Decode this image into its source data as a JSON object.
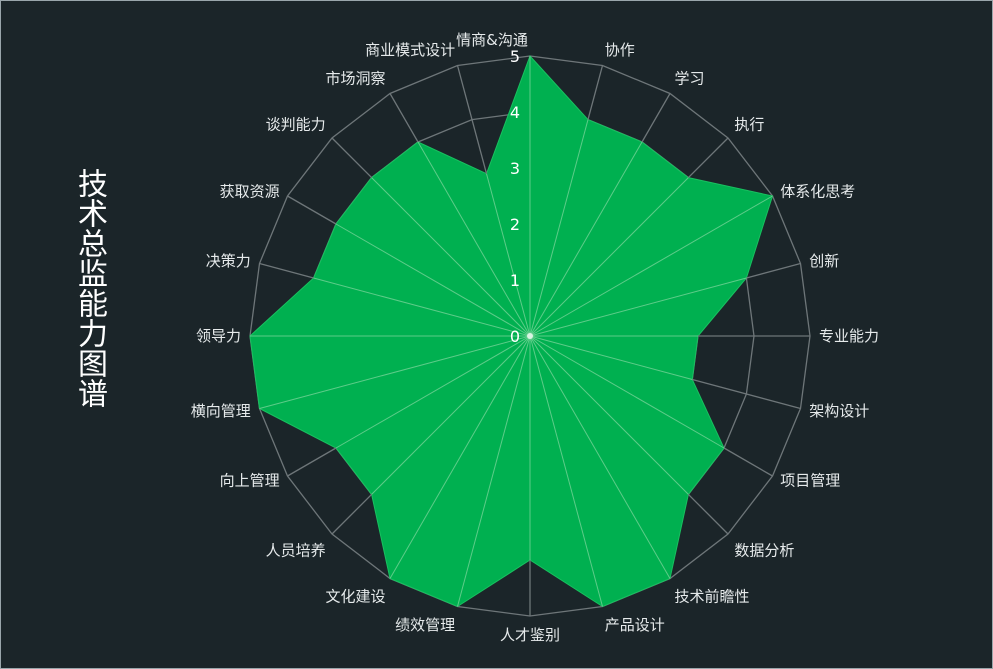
{
  "title": "技术总监能力图谱",
  "colors": {
    "background": "#1b2529",
    "fill": "#00b050",
    "grid": "#6e7679",
    "spoke": "#8fdca8",
    "text": "#e6eaeb"
  },
  "chart_data": {
    "type": "radar",
    "title": "技术总监能力图谱",
    "categories": [
      "情商&沟通",
      "协作",
      "学习",
      "执行",
      "体系化思考",
      "创新",
      "专业能力",
      "架构设计",
      "项目管理",
      "数据分析",
      "技术前瞻性",
      "产品设计",
      "人才鉴别",
      "绩效管理",
      "文化建设",
      "人员培养",
      "向上管理",
      "横向管理",
      "领导力",
      "决策力",
      "获取资源",
      "谈判能力",
      "市场洞察",
      "商业模式设计"
    ],
    "values": [
      5,
      4,
      4,
      4,
      5,
      4,
      3,
      3,
      4,
      4,
      5,
      5,
      4,
      5,
      5,
      4,
      4,
      5,
      5,
      4,
      4,
      4,
      4,
      3
    ],
    "range": [
      0,
      5
    ],
    "ticks": [
      "0",
      "1",
      "2",
      "3",
      "4",
      "5"
    ],
    "grid": true,
    "legend": "none"
  }
}
